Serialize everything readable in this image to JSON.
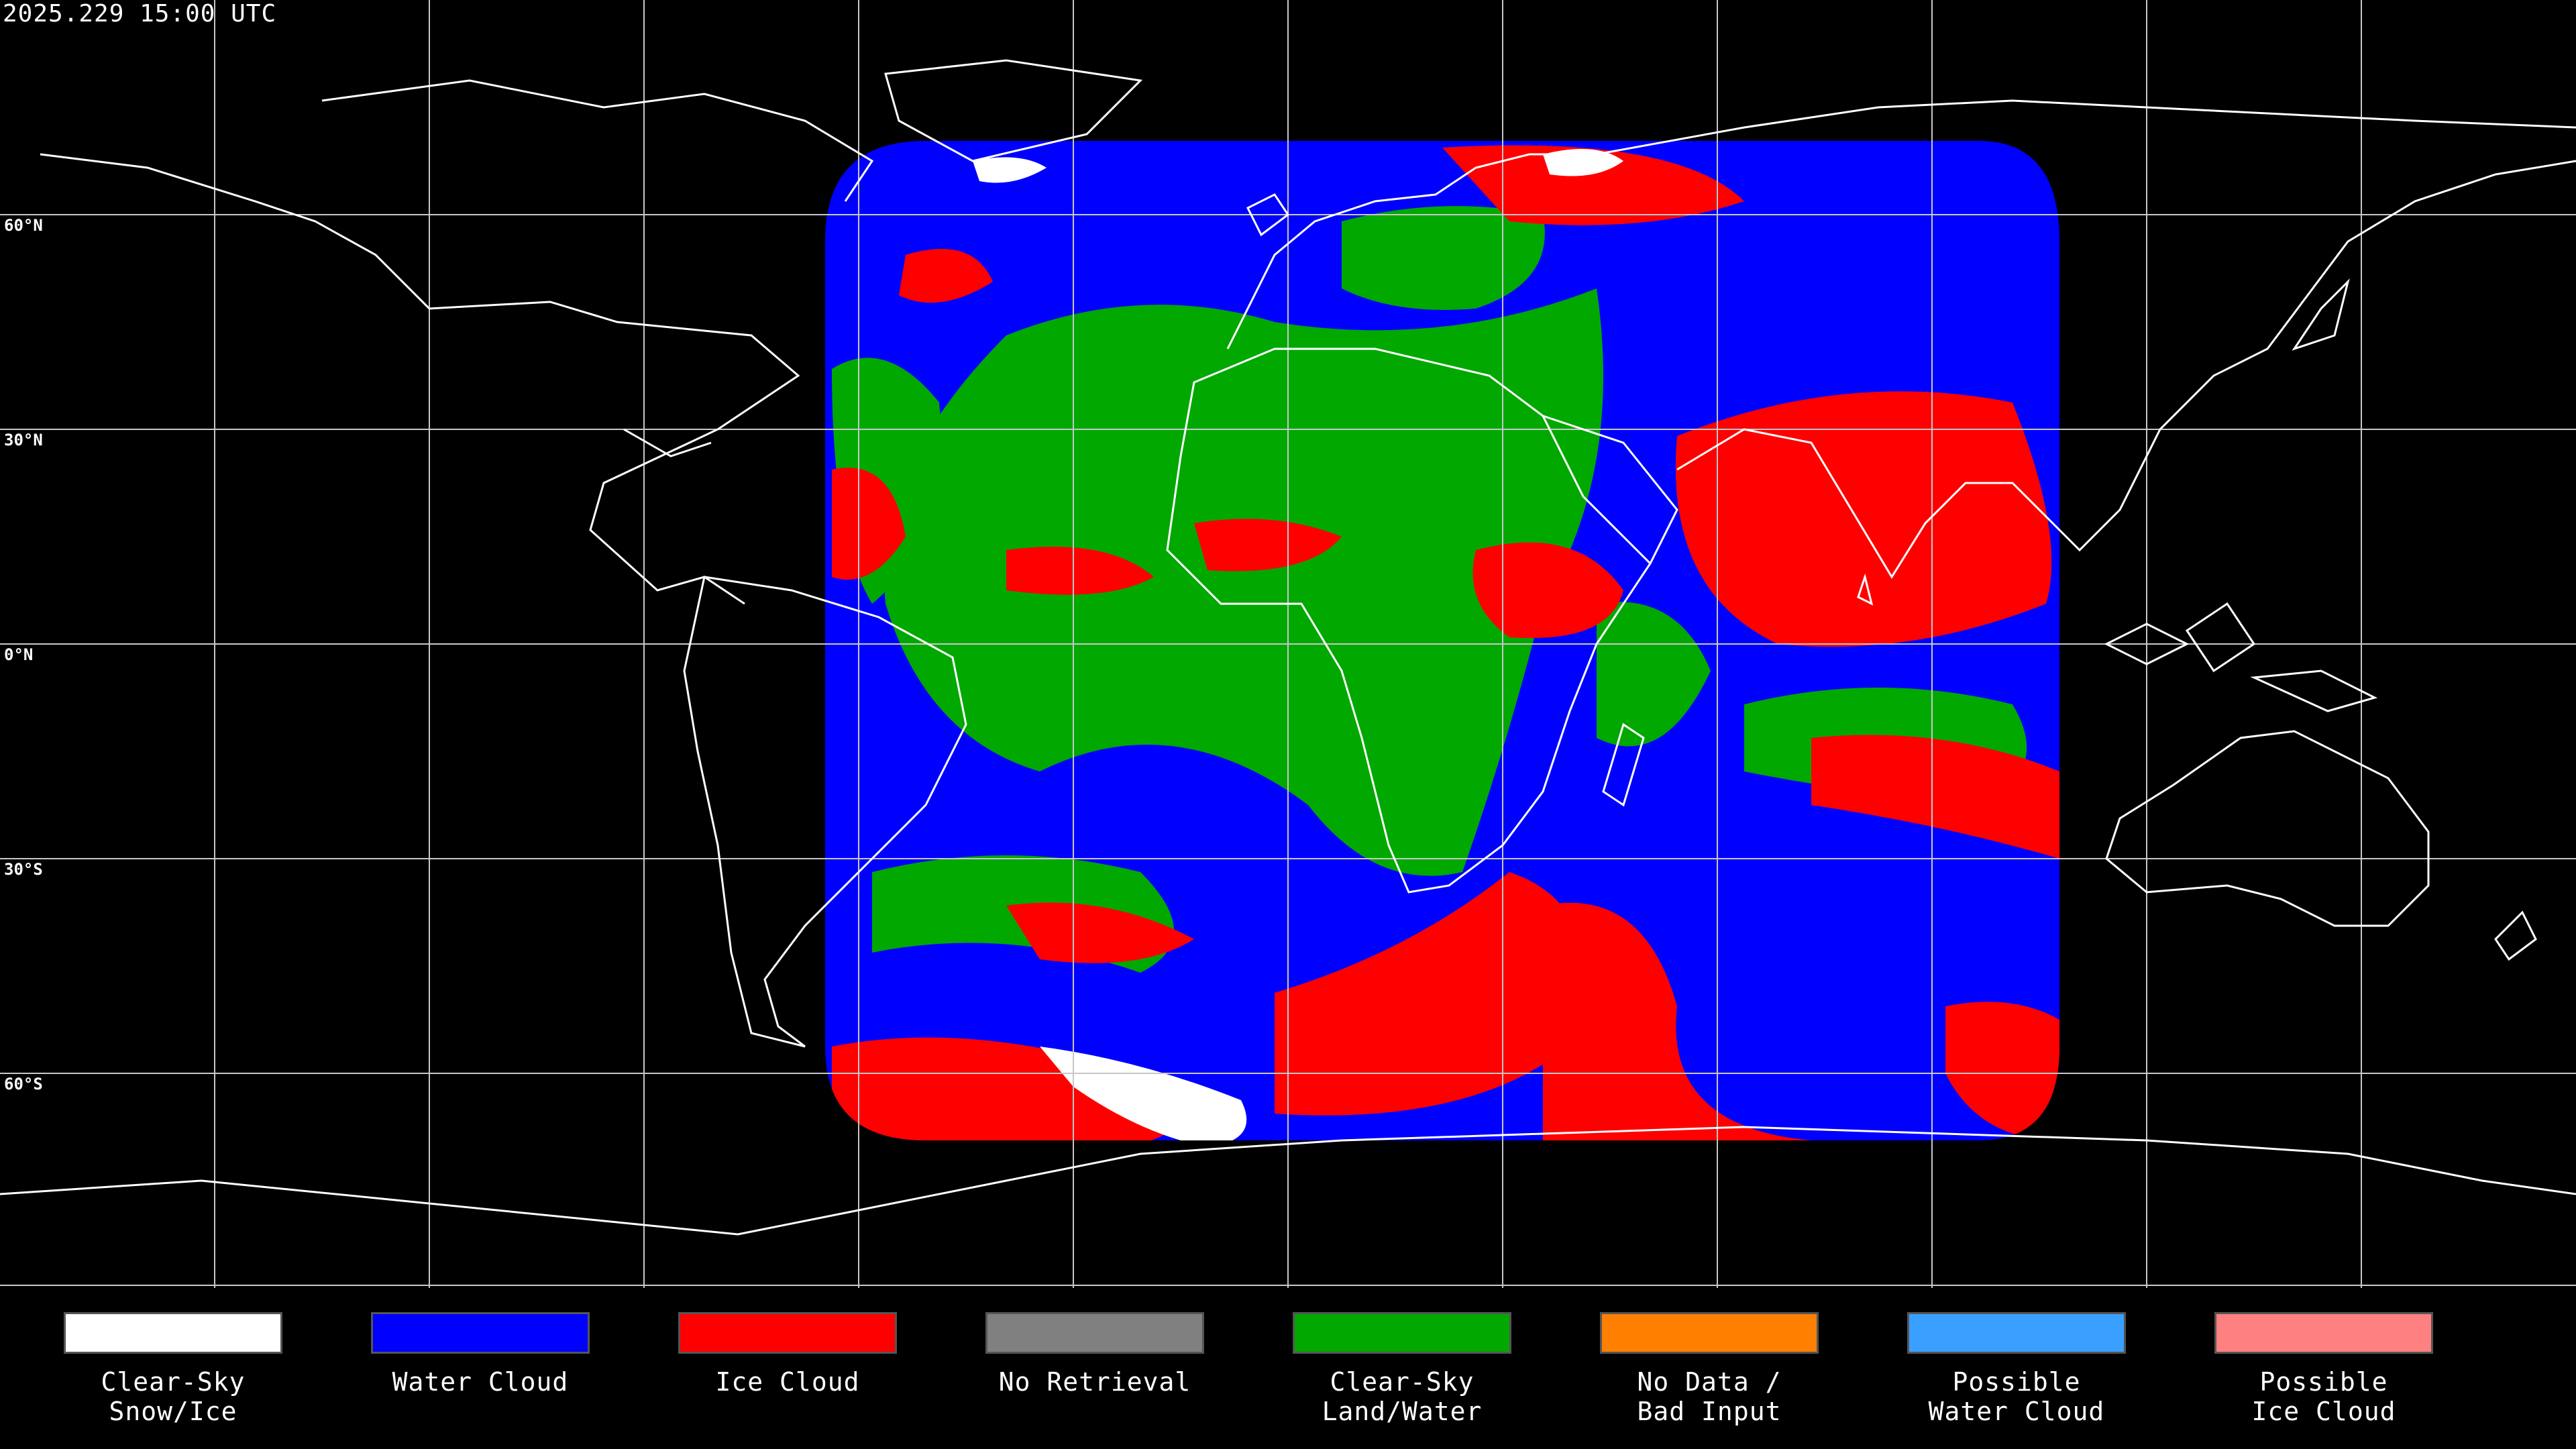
{
  "timestamp": "2025.229 15:00 UTC",
  "lat_labels": [
    "60°N",
    "30°N",
    "0°N",
    "30°S",
    "60°S"
  ],
  "legend": [
    {
      "label": "Clear-Sky\nSnow/Ice",
      "color": "#ffffff"
    },
    {
      "label": "Water Cloud",
      "color": "#0000ff"
    },
    {
      "label": "Ice Cloud",
      "color": "#ff0000"
    },
    {
      "label": "No Retrieval",
      "color": "#808080"
    },
    {
      "label": "Clear-Sky\nLand/Water",
      "color": "#00a800"
    },
    {
      "label": "No Data /\nBad Input",
      "color": "#ff8000"
    },
    {
      "label": "Possible\nWater Cloud",
      "color": "#3aa0ff"
    },
    {
      "label": "Possible\nIce Cloud",
      "color": "#ff8080"
    }
  ]
}
